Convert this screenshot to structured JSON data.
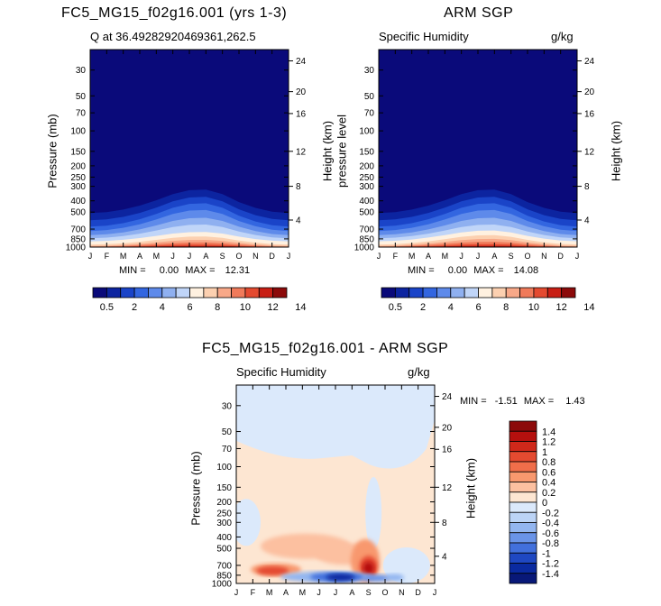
{
  "chart_data": [
    {
      "type": "heatmap",
      "title": "FC5_MG15_f02g16.001 (yrs 1-3)",
      "subtitle": "Q at 36.49282920469361,262.5",
      "xlabel": "",
      "ylabel_left": "Pressure (mb)",
      "ylabel_right": "Height (km)",
      "x_ticks": [
        "J",
        "F",
        "M",
        "A",
        "M",
        "J",
        "J",
        "A",
        "S",
        "O",
        "N",
        "D",
        "J"
      ],
      "y_ticks_pressure": [
        "30",
        "50",
        "70",
        "100",
        "150",
        "200",
        "250",
        "300",
        "400",
        "500",
        "700",
        "850",
        "1000"
      ],
      "y_ticks_height": [
        "24",
        "20",
        "16",
        "12",
        "8",
        "4"
      ],
      "min_label": "MIN =",
      "min": "0.00",
      "max_label": "MAX =",
      "max": "12.31",
      "peak_value": 12.31,
      "peak_month_index": 7,
      "levels": [
        "0.5",
        "2",
        "4",
        "6",
        "8",
        "10",
        "12",
        "14"
      ]
    },
    {
      "type": "heatmap",
      "title": "ARM SGP",
      "subtitle": "Specific Humidity",
      "units": "g/kg",
      "ylabel_left": "pressure level",
      "ylabel_right": "Height (km)",
      "x_ticks": [
        "J",
        "F",
        "M",
        "A",
        "M",
        "J",
        "J",
        "A",
        "S",
        "O",
        "N",
        "D",
        "J"
      ],
      "y_ticks_pressure": [
        "30",
        "50",
        "70",
        "100",
        "150",
        "200",
        "250",
        "300",
        "400",
        "500",
        "700",
        "850",
        "1000"
      ],
      "y_ticks_height": [
        "24",
        "20",
        "16",
        "12",
        "8",
        "4"
      ],
      "min_label": "MIN =",
      "min": "0.00",
      "max_label": "MAX =",
      "max": "14.08",
      "peak_value": 14.08,
      "peak_month_index": 7,
      "levels": [
        "0.5",
        "2",
        "4",
        "6",
        "8",
        "10",
        "12",
        "14"
      ]
    },
    {
      "type": "heatmap",
      "title": "FC5_MG15_f02g16.001 - ARM SGP",
      "subtitle": "Specific Humidity",
      "units": "g/kg",
      "ylabel_left": "Pressure (mb)",
      "ylabel_right": "Height (km)",
      "x_ticks": [
        "J",
        "F",
        "M",
        "A",
        "M",
        "J",
        "J",
        "A",
        "S",
        "O",
        "N",
        "D",
        "J"
      ],
      "y_ticks_pressure": [
        "30",
        "50",
        "70",
        "100",
        "150",
        "200",
        "250",
        "300",
        "400",
        "500",
        "700",
        "850",
        "1000"
      ],
      "y_ticks_height": [
        "24",
        "20",
        "16",
        "12",
        "8",
        "4"
      ],
      "min_label": "MIN =",
      "min": "-1.51",
      "max_label": "MAX =",
      "max": "1.43",
      "diff_levels": [
        "1.4",
        "1.2",
        "1",
        "0.8",
        "0.6",
        "0.4",
        "0.2",
        "0",
        "-0.2",
        "-0.4",
        "-0.6",
        "-0.8",
        "-1",
        "-1.2",
        "-1.4"
      ]
    }
  ],
  "colors": {
    "humidity_scale": [
      "#0a0a7a",
      "#0c24a0",
      "#1a44c8",
      "#3366e0",
      "#5e8aea",
      "#8fb0f0",
      "#c0d5f8",
      "#fff1e0",
      "#fcd0b0",
      "#f8a888",
      "#f07a5a",
      "#e44a30",
      "#c81e14",
      "#8c0a0a"
    ],
    "diff_scale": [
      "#8c0a0a",
      "#b5100e",
      "#d0281a",
      "#e44a30",
      "#f06e4a",
      "#f8986e",
      "#fcc0a0",
      "#fde6d2",
      "#dbe9fb",
      "#bcd4f6",
      "#93b6f0",
      "#6a94e8",
      "#4270dc",
      "#1f48c2",
      "#0a2aa0",
      "#081878"
    ]
  }
}
